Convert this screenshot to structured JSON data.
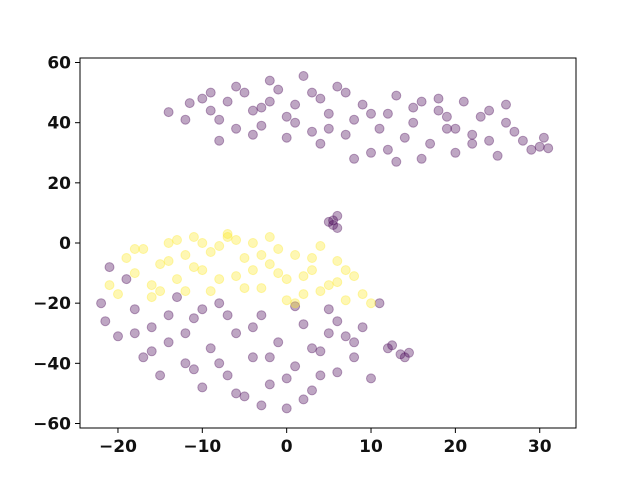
{
  "chart_data": {
    "type": "scatter",
    "title": "",
    "xlabel": "",
    "ylabel": "",
    "xlim": [
      -24.5,
      34.3
    ],
    "ylim": [
      -61.5,
      61.5
    ],
    "x_ticks": [
      -20,
      -10,
      0,
      10,
      20,
      30
    ],
    "y_ticks": [
      -60,
      -40,
      -20,
      0,
      20,
      40,
      60
    ],
    "x_tick_labels": [
      "−20",
      "−10",
      "0",
      "10",
      "20",
      "30"
    ],
    "y_tick_labels": [
      "−60",
      "−40",
      "−20",
      "0",
      "20",
      "40",
      "60"
    ],
    "grid": false,
    "legend": "none",
    "marker_alpha": 0.35,
    "series": [
      {
        "color": "#440154",
        "points": [
          [
            -14,
            43.5
          ],
          [
            -11.5,
            46.5
          ],
          [
            -10,
            48
          ],
          [
            -9,
            44
          ],
          [
            -8,
            41
          ],
          [
            -7,
            47
          ],
          [
            -6,
            38
          ],
          [
            -5,
            50
          ],
          [
            -4,
            44
          ],
          [
            -3,
            39
          ],
          [
            -2,
            47
          ],
          [
            -1,
            51
          ],
          [
            0,
            42
          ],
          [
            1,
            46
          ],
          [
            2,
            55.5
          ],
          [
            3,
            37
          ],
          [
            4,
            48
          ],
          [
            5,
            43
          ],
          [
            6,
            52
          ],
          [
            7,
            36
          ],
          [
            8,
            41
          ],
          [
            9,
            46
          ],
          [
            10,
            30
          ],
          [
            11,
            38
          ],
          [
            12,
            43
          ],
          [
            13,
            27
          ],
          [
            14,
            35
          ],
          [
            15,
            40
          ],
          [
            16,
            47
          ],
          [
            17,
            33
          ],
          [
            18,
            44
          ],
          [
            19,
            38
          ],
          [
            20,
            30
          ],
          [
            21,
            47
          ],
          [
            22,
            36
          ],
          [
            23,
            42
          ],
          [
            24,
            34
          ],
          [
            25,
            29
          ],
          [
            26,
            40
          ],
          [
            27,
            37
          ],
          [
            28,
            34
          ],
          [
            29,
            31
          ],
          [
            30,
            32
          ],
          [
            30.5,
            35
          ],
          [
            31,
            31.5
          ],
          [
            -8,
            34
          ],
          [
            -4,
            36
          ],
          [
            0,
            35
          ],
          [
            4,
            33
          ],
          [
            8,
            28
          ],
          [
            12,
            31
          ],
          [
            16,
            28
          ],
          [
            20,
            38
          ],
          [
            24,
            44
          ],
          [
            -6,
            52
          ],
          [
            -2,
            54
          ],
          [
            3,
            50
          ],
          [
            7,
            50
          ],
          [
            -9,
            50
          ],
          [
            13,
            49
          ],
          [
            18,
            48
          ],
          [
            26,
            46
          ],
          [
            22,
            33
          ],
          [
            15,
            45
          ],
          [
            -12,
            41
          ],
          [
            10,
            43
          ],
          [
            5,
            38
          ],
          [
            -3,
            45
          ],
          [
            1,
            40
          ],
          [
            19,
            42
          ],
          [
            5.5,
            6
          ],
          [
            6,
            9
          ],
          [
            5.5,
            7.5
          ],
          [
            6,
            5
          ],
          [
            5,
            7
          ],
          [
            -22,
            -20
          ],
          [
            -21.5,
            -26
          ],
          [
            -21,
            -8
          ],
          [
            -20,
            -31
          ],
          [
            -19,
            -12
          ],
          [
            -18,
            -22
          ],
          [
            -17,
            -38
          ],
          [
            -16,
            -28
          ],
          [
            -15,
            -44
          ],
          [
            -14,
            -33
          ],
          [
            -13,
            -18
          ],
          [
            -12,
            -40
          ],
          [
            -11,
            -25
          ],
          [
            -10,
            -48
          ],
          [
            -9,
            -35
          ],
          [
            -8,
            -20
          ],
          [
            -7,
            -44
          ],
          [
            -6,
            -30
          ],
          [
            -5,
            -51
          ],
          [
            -4,
            -38
          ],
          [
            -3,
            -24
          ],
          [
            -2,
            -47
          ],
          [
            -1,
            -33
          ],
          [
            0,
            -55
          ],
          [
            1,
            -41
          ],
          [
            2,
            -27
          ],
          [
            3,
            -49
          ],
          [
            4,
            -36
          ],
          [
            5,
            -22
          ],
          [
            6,
            -43
          ],
          [
            7,
            -31
          ],
          [
            8,
            -38
          ],
          [
            9,
            -28
          ],
          [
            10,
            -45
          ],
          [
            12,
            -35
          ],
          [
            12.5,
            -34
          ],
          [
            13.5,
            -37
          ],
          [
            14,
            -38
          ],
          [
            14.5,
            -36.5
          ],
          [
            11,
            -20
          ],
          [
            -16,
            -36
          ],
          [
            -12,
            -30
          ],
          [
            -8,
            -40
          ],
          [
            -4,
            -28
          ],
          [
            0,
            -45
          ],
          [
            3,
            -35
          ],
          [
            6,
            -26
          ],
          [
            -10,
            -22
          ],
          [
            -6,
            -50
          ],
          [
            -2,
            -38
          ],
          [
            2,
            -52
          ],
          [
            4,
            -44
          ],
          [
            -14,
            -24
          ],
          [
            -18,
            -30
          ],
          [
            8,
            -33
          ],
          [
            -3,
            -54
          ],
          [
            -7,
            -24
          ],
          [
            1,
            -21
          ],
          [
            5,
            -30
          ],
          [
            -11,
            -42
          ]
        ]
      },
      {
        "color": "#fde725",
        "points": [
          [
            -21,
            -14
          ],
          [
            -20,
            -17
          ],
          [
            -19,
            -5
          ],
          [
            -18,
            -10
          ],
          [
            -17,
            -2
          ],
          [
            -16,
            -14
          ],
          [
            -15,
            -7
          ],
          [
            -14,
            0
          ],
          [
            -13,
            -12
          ],
          [
            -12,
            -4
          ],
          [
            -11,
            2
          ],
          [
            -10,
            -9
          ],
          [
            -9,
            -16
          ],
          [
            -8,
            -1
          ],
          [
            -7,
            3
          ],
          [
            -6,
            -11
          ],
          [
            -5,
            -5
          ],
          [
            -4,
            0
          ],
          [
            -3,
            -15
          ],
          [
            -2,
            -7
          ],
          [
            -1,
            -2
          ],
          [
            0,
            -12
          ],
          [
            1,
            -4
          ],
          [
            2,
            -17
          ],
          [
            3,
            -9
          ],
          [
            4,
            -1
          ],
          [
            5,
            -14
          ],
          [
            6,
            -6
          ],
          [
            7,
            -19
          ],
          [
            8,
            -11
          ],
          [
            9,
            -17
          ],
          [
            10,
            -20
          ],
          [
            -16,
            -18
          ],
          [
            -12,
            -16
          ],
          [
            -8,
            -12
          ],
          [
            -4,
            -9
          ],
          [
            0,
            -19
          ],
          [
            -6,
            1
          ],
          [
            -10,
            0
          ],
          [
            -14,
            -6
          ],
          [
            -18,
            -2
          ],
          [
            -2,
            2
          ],
          [
            2,
            -11
          ],
          [
            4,
            -16
          ],
          [
            6,
            -13
          ],
          [
            -7,
            2
          ],
          [
            -3,
            -4
          ],
          [
            -11,
            -8
          ],
          [
            -9,
            -3
          ],
          [
            -13,
            1
          ],
          [
            -5,
            -15
          ],
          [
            1,
            -20
          ],
          [
            3,
            -5
          ],
          [
            -15,
            -16
          ],
          [
            7,
            -9
          ],
          [
            -1,
            -10
          ]
        ]
      }
    ]
  }
}
